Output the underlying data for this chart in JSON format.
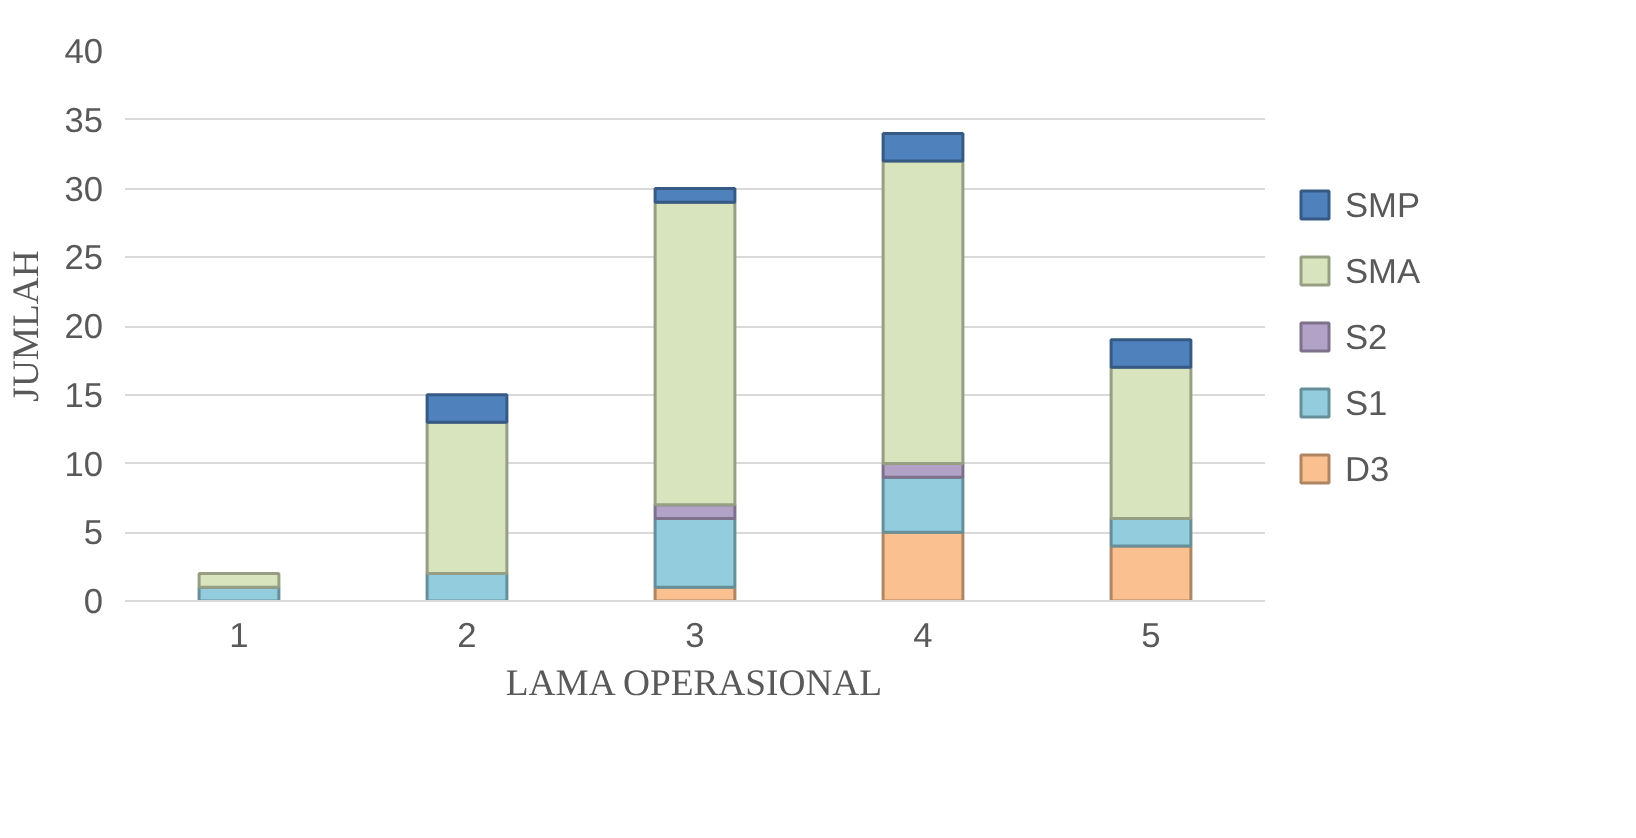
{
  "chart_data": {
    "type": "bar",
    "stacked": true,
    "xlabel": "LAMA OPERASIONAL",
    "ylabel": "JUMLAH",
    "categories": [
      "1",
      "2",
      "3",
      "4",
      "5"
    ],
    "series": [
      {
        "name": "D3",
        "color": "#fac090",
        "values": [
          0,
          0,
          1,
          5,
          4
        ]
      },
      {
        "name": "S1",
        "color": "#93cddd",
        "values": [
          1,
          2,
          5,
          4,
          2
        ]
      },
      {
        "name": "S2",
        "color": "#b3a2c7",
        "values": [
          0,
          0,
          1,
          1,
          0
        ]
      },
      {
        "name": "SMA",
        "color": "#d7e4bd",
        "values": [
          1,
          11,
          22,
          22,
          11
        ]
      },
      {
        "name": "SMP",
        "color": "#4f81bd",
        "values": [
          0,
          2,
          1,
          2,
          2
        ]
      }
    ],
    "ylim": [
      0,
      40
    ],
    "yticks": [
      0,
      5,
      10,
      15,
      20,
      25,
      30,
      35,
      40
    ],
    "grid": "y",
    "legend": "right"
  }
}
